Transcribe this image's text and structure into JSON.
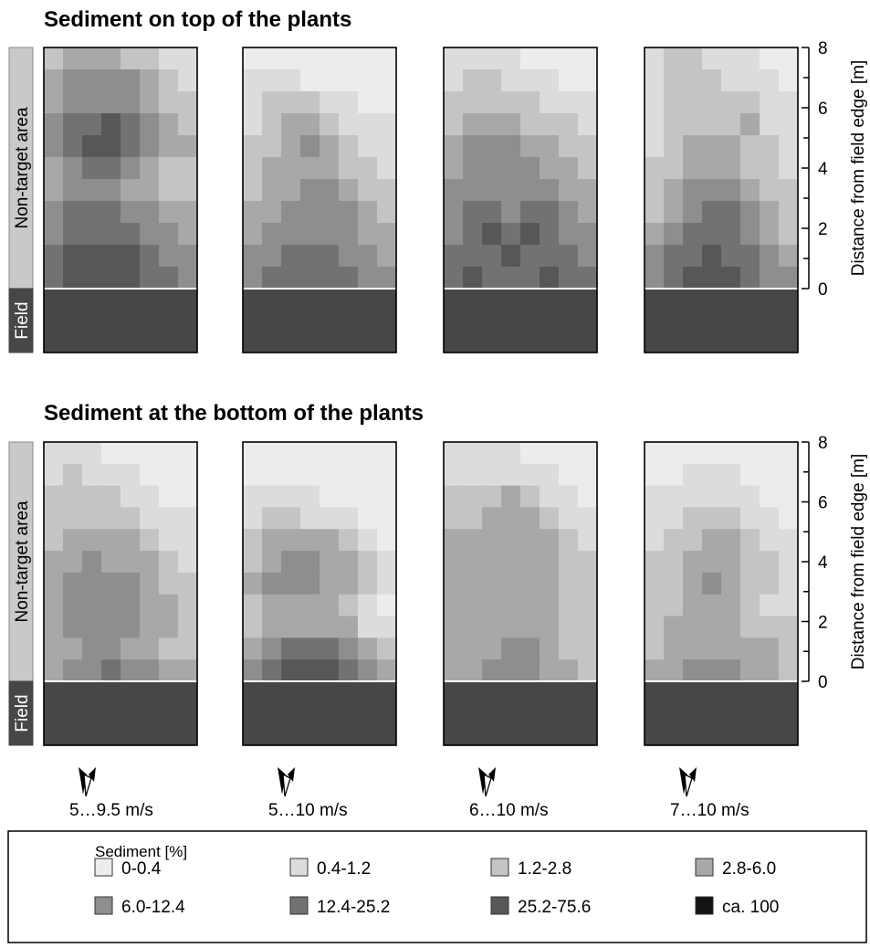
{
  "chart_data": [
    {
      "type": "heatmap",
      "title": "Sediment on top of the plants",
      "ylabel": "Distance from field edge [m]",
      "ylim": [
        0,
        8
      ],
      "yticks": [
        "0",
        "2",
        "4",
        "6",
        "8"
      ],
      "side_labels": {
        "upper": "Non-target area",
        "lower": "Field"
      },
      "legend_title": "Sediment [%]",
      "classes": [
        "0-0.4",
        "0.4-1.2",
        "1.2-2.8",
        "2.8-6.0",
        "6.0-12.4",
        "12.4-25.2",
        "25.2-75.6",
        "ca. 100"
      ],
      "colors": [
        "#ececec",
        "#dcdcdc",
        "#c4c4c4",
        "#a8a8a8",
        "#8e8e8e",
        "#727272",
        "#575757",
        "#141414"
      ],
      "field_color": "#474747",
      "panels": [
        {
          "wind": "5…9.5 m/s",
          "rows": [
            [
              2,
              3,
              3,
              3,
              2,
              2,
              1,
              1
            ],
            [
              3,
              4,
              4,
              4,
              4,
              3,
              2,
              1
            ],
            [
              3,
              4,
              4,
              4,
              4,
              3,
              2,
              2
            ],
            [
              4,
              5,
              5,
              6,
              5,
              4,
              3,
              2
            ],
            [
              4,
              5,
              6,
              6,
              5,
              4,
              3,
              3
            ],
            [
              3,
              4,
              5,
              5,
              4,
              3,
              2,
              2
            ],
            [
              3,
              4,
              4,
              4,
              3,
              3,
              2,
              2
            ],
            [
              4,
              5,
              5,
              5,
              4,
              4,
              3,
              3
            ],
            [
              4,
              5,
              5,
              5,
              5,
              4,
              4,
              3
            ],
            [
              5,
              6,
              6,
              6,
              6,
              5,
              4,
              4
            ],
            [
              5,
              6,
              6,
              6,
              6,
              5,
              5,
              4
            ]
          ]
        },
        {
          "wind": "5…10 m/s",
          "rows": [
            [
              0,
              0,
              0,
              0,
              0,
              0,
              0,
              0
            ],
            [
              1,
              1,
              1,
              0,
              0,
              0,
              0,
              0
            ],
            [
              1,
              2,
              2,
              2,
              1,
              1,
              0,
              0
            ],
            [
              1,
              2,
              3,
              3,
              2,
              1,
              1,
              1
            ],
            [
              2,
              2,
              3,
              4,
              3,
              2,
              1,
              1
            ],
            [
              2,
              3,
              3,
              3,
              3,
              2,
              2,
              1
            ],
            [
              2,
              3,
              3,
              4,
              4,
              3,
              2,
              2
            ],
            [
              3,
              3,
              4,
              4,
              4,
              4,
              3,
              2
            ],
            [
              3,
              4,
              4,
              4,
              4,
              4,
              3,
              3
            ],
            [
              4,
              4,
              5,
              5,
              5,
              4,
              4,
              3
            ],
            [
              4,
              5,
              5,
              5,
              5,
              5,
              4,
              4
            ]
          ]
        },
        {
          "wind": "6…10 m/s",
          "rows": [
            [
              1,
              1,
              1,
              1,
              0,
              0,
              0,
              0
            ],
            [
              1,
              2,
              2,
              1,
              1,
              1,
              0,
              0
            ],
            [
              2,
              2,
              2,
              2,
              2,
              1,
              1,
              1
            ],
            [
              2,
              3,
              3,
              3,
              2,
              2,
              2,
              1
            ],
            [
              3,
              4,
              4,
              4,
              3,
              3,
              2,
              2
            ],
            [
              3,
              4,
              4,
              4,
              4,
              3,
              3,
              2
            ],
            [
              4,
              4,
              4,
              4,
              4,
              4,
              3,
              3
            ],
            [
              4,
              5,
              5,
              4,
              5,
              5,
              4,
              3
            ],
            [
              4,
              5,
              6,
              5,
              6,
              5,
              4,
              4
            ],
            [
              5,
              5,
              5,
              6,
              5,
              5,
              5,
              4
            ],
            [
              5,
              6,
              5,
              5,
              5,
              6,
              5,
              5
            ]
          ]
        },
        {
          "wind": "7…10 m/s",
          "rows": [
            [
              1,
              2,
              2,
              1,
              1,
              1,
              0,
              0
            ],
            [
              1,
              2,
              2,
              2,
              1,
              1,
              1,
              0
            ],
            [
              1,
              2,
              2,
              2,
              2,
              2,
              1,
              1
            ],
            [
              1,
              2,
              2,
              2,
              2,
              3,
              1,
              1
            ],
            [
              1,
              2,
              3,
              3,
              3,
              2,
              2,
              1
            ],
            [
              2,
              2,
              3,
              3,
              3,
              2,
              2,
              1
            ],
            [
              2,
              3,
              4,
              4,
              4,
              3,
              2,
              2
            ],
            [
              2,
              3,
              4,
              5,
              5,
              4,
              3,
              2
            ],
            [
              3,
              4,
              5,
              5,
              5,
              4,
              3,
              2
            ],
            [
              4,
              5,
              5,
              6,
              5,
              5,
              4,
              3
            ],
            [
              4,
              5,
              6,
              6,
              6,
              5,
              4,
              4
            ]
          ]
        }
      ]
    },
    {
      "type": "heatmap",
      "title": "Sediment at the bottom of the plants",
      "ylabel": "Distance from field edge [m]",
      "ylim": [
        0,
        8
      ],
      "yticks": [
        "0",
        "2",
        "4",
        "6",
        "8"
      ],
      "side_labels": {
        "upper": "Non-target area",
        "lower": "Field"
      },
      "panels": [
        {
          "wind": "5…9.5 m/s",
          "rows": [
            [
              1,
              1,
              1,
              0,
              0,
              0,
              0,
              0
            ],
            [
              1,
              2,
              1,
              1,
              1,
              0,
              0,
              0
            ],
            [
              2,
              2,
              2,
              2,
              1,
              1,
              0,
              0
            ],
            [
              2,
              2,
              2,
              2,
              2,
              1,
              1,
              1
            ],
            [
              2,
              3,
              3,
              3,
              3,
              2,
              1,
              1
            ],
            [
              3,
              3,
              4,
              3,
              3,
              3,
              2,
              1
            ],
            [
              3,
              4,
              4,
              4,
              4,
              3,
              2,
              2
            ],
            [
              3,
              4,
              4,
              4,
              4,
              3,
              3,
              2
            ],
            [
              3,
              4,
              4,
              4,
              4,
              3,
              3,
              2
            ],
            [
              3,
              3,
              4,
              4,
              3,
              3,
              2,
              2
            ],
            [
              3,
              4,
              4,
              5,
              4,
              4,
              3,
              3
            ]
          ]
        },
        {
          "wind": "5…10 m/s",
          "rows": [
            [
              0,
              0,
              0,
              0,
              0,
              0,
              0,
              0
            ],
            [
              0,
              0,
              0,
              0,
              0,
              0,
              0,
              0
            ],
            [
              1,
              1,
              1,
              1,
              0,
              0,
              0,
              0
            ],
            [
              1,
              2,
              2,
              1,
              1,
              1,
              0,
              0
            ],
            [
              2,
              3,
              3,
              3,
              3,
              2,
              1,
              0
            ],
            [
              2,
              3,
              4,
              4,
              3,
              3,
              2,
              1
            ],
            [
              3,
              4,
              4,
              4,
              3,
              3,
              2,
              1
            ],
            [
              2,
              3,
              3,
              3,
              3,
              2,
              1,
              0
            ],
            [
              2,
              3,
              3,
              3,
              3,
              3,
              1,
              1
            ],
            [
              3,
              4,
              5,
              5,
              5,
              4,
              3,
              2
            ],
            [
              4,
              5,
              6,
              6,
              6,
              5,
              4,
              3
            ]
          ]
        },
        {
          "wind": "6…10 m/s",
          "rows": [
            [
              1,
              1,
              1,
              1,
              0,
              0,
              0,
              0
            ],
            [
              1,
              1,
              1,
              1,
              1,
              1,
              0,
              0
            ],
            [
              2,
              2,
              2,
              3,
              2,
              1,
              1,
              0
            ],
            [
              2,
              2,
              3,
              3,
              3,
              2,
              1,
              1
            ],
            [
              3,
              3,
              3,
              3,
              3,
              3,
              2,
              1
            ],
            [
              3,
              3,
              3,
              3,
              3,
              3,
              2,
              2
            ],
            [
              3,
              3,
              3,
              3,
              3,
              3,
              2,
              2
            ],
            [
              3,
              3,
              3,
              3,
              3,
              3,
              2,
              2
            ],
            [
              3,
              3,
              3,
              3,
              3,
              3,
              2,
              2
            ],
            [
              3,
              3,
              3,
              4,
              4,
              3,
              2,
              2
            ],
            [
              3,
              3,
              4,
              4,
              4,
              3,
              3,
              2
            ]
          ]
        },
        {
          "wind": "7…10 m/s",
          "rows": [
            [
              0,
              0,
              0,
              0,
              0,
              0,
              0,
              0
            ],
            [
              0,
              0,
              1,
              1,
              1,
              0,
              0,
              0
            ],
            [
              1,
              1,
              1,
              1,
              1,
              1,
              0,
              0
            ],
            [
              1,
              1,
              2,
              2,
              2,
              1,
              1,
              0
            ],
            [
              1,
              2,
              2,
              3,
              3,
              2,
              1,
              1
            ],
            [
              2,
              2,
              3,
              3,
              3,
              2,
              2,
              1
            ],
            [
              2,
              2,
              3,
              4,
              3,
              2,
              2,
              1
            ],
            [
              2,
              2,
              3,
              3,
              3,
              2,
              1,
              1
            ],
            [
              2,
              3,
              3,
              3,
              3,
              2,
              2,
              2
            ],
            [
              2,
              3,
              3,
              3,
              3,
              3,
              3,
              2
            ],
            [
              3,
              3,
              4,
              4,
              4,
              3,
              3,
              2
            ]
          ]
        }
      ]
    }
  ]
}
